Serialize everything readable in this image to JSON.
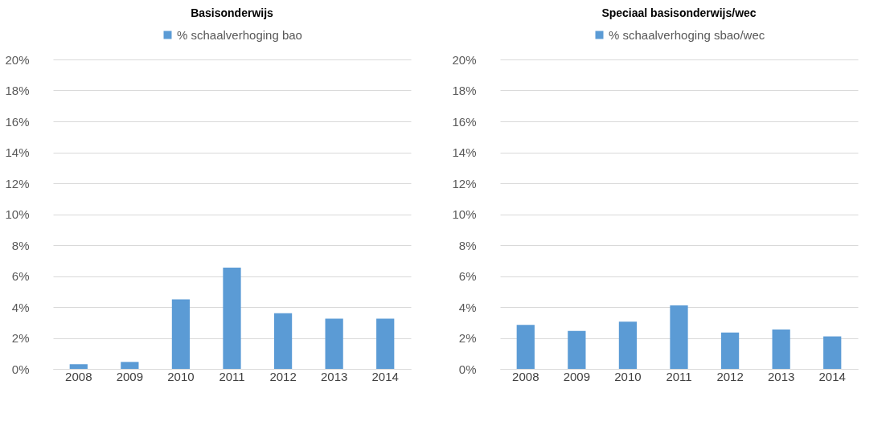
{
  "chart_data": [
    {
      "type": "bar",
      "title": "Basisonderwijs",
      "categories": [
        "2008",
        "2009",
        "2010",
        "2011",
        "2012",
        "2013",
        "2014"
      ],
      "series": [
        {
          "name": "% schaalverhoging bao",
          "color": "#5b9bd5",
          "values": [
            0.3,
            0.45,
            4.5,
            6.55,
            3.6,
            3.25,
            3.25
          ]
        }
      ],
      "ylim": [
        0,
        20
      ],
      "yticks": [
        {
          "value": 0,
          "label": "0%"
        },
        {
          "value": 2,
          "label": "2%"
        },
        {
          "value": 4,
          "label": "4%"
        },
        {
          "value": 6,
          "label": "6%"
        },
        {
          "value": 8,
          "label": "8%"
        },
        {
          "value": 10,
          "label": "10%"
        },
        {
          "value": 12,
          "label": "12%"
        },
        {
          "value": 14,
          "label": "14%"
        },
        {
          "value": 16,
          "label": "16%"
        },
        {
          "value": 18,
          "label": "18%"
        },
        {
          "value": 20,
          "label": "20%"
        }
      ],
      "grid": "y",
      "legend": "top"
    },
    {
      "type": "bar",
      "title": "Speciaal basisonderwijs/wec",
      "categories": [
        "2008",
        "2009",
        "2010",
        "2011",
        "2012",
        "2013",
        "2014"
      ],
      "series": [
        {
          "name": "% schaalverhoging sbao/wec",
          "color": "#5b9bd5",
          "values": [
            2.85,
            2.45,
            3.05,
            4.1,
            2.35,
            2.55,
            2.1
          ]
        }
      ],
      "ylim": [
        0,
        20
      ],
      "yticks": [
        {
          "value": 0,
          "label": "0%"
        },
        {
          "value": 2,
          "label": "2%"
        },
        {
          "value": 4,
          "label": "4%"
        },
        {
          "value": 6,
          "label": "6%"
        },
        {
          "value": 8,
          "label": "8%"
        },
        {
          "value": 10,
          "label": "10%"
        },
        {
          "value": 12,
          "label": "12%"
        },
        {
          "value": 14,
          "label": "14%"
        },
        {
          "value": 16,
          "label": "16%"
        },
        {
          "value": 18,
          "label": "18%"
        },
        {
          "value": 20,
          "label": "20%"
        }
      ],
      "grid": "y",
      "legend": "top"
    }
  ]
}
